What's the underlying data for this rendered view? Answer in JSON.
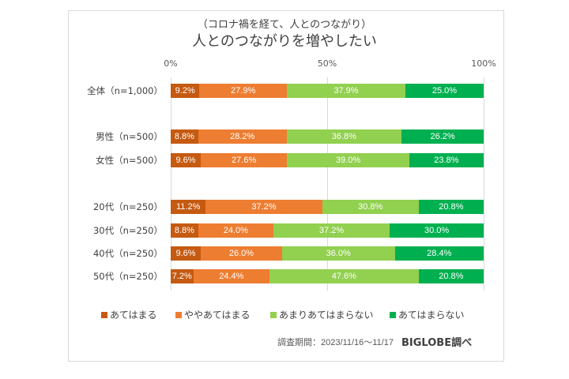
{
  "chart_data": {
    "type": "bar",
    "stacked": true,
    "orientation": "horizontal",
    "subtitle": "（コロナ禍を経て、人とのつながり）",
    "title": "人とのつながりを増やしたい",
    "xlim": [
      0,
      100
    ],
    "ticks": [
      "0%",
      "50%",
      "100%"
    ],
    "grid": true,
    "legend_position": "bottom",
    "categories": [
      "全体（n=1,000）",
      "男性（n=500）",
      "女性（n=500）",
      "20代（n=250）",
      "30代（n=250）",
      "40代（n=250）",
      "50代（n=250）"
    ],
    "series": [
      {
        "name": "あてはまる",
        "color": "#c55a11",
        "values": [
          9.2,
          8.8,
          9.6,
          11.2,
          8.8,
          9.6,
          7.2
        ]
      },
      {
        "name": "ややあてはまる",
        "color": "#ed7d31",
        "values": [
          27.9,
          28.2,
          27.6,
          37.2,
          24.0,
          26.0,
          24.4
        ]
      },
      {
        "name": "あまりあてはまらない",
        "color": "#92d050",
        "values": [
          37.9,
          36.8,
          39.0,
          30.8,
          37.2,
          36.0,
          47.6
        ]
      },
      {
        "name": "あてはまらない",
        "color": "#00b050",
        "values": [
          25.0,
          26.2,
          23.8,
          20.8,
          30.0,
          28.4,
          20.8
        ]
      }
    ]
  },
  "footer": {
    "source": "調査期間：2023/11/16～11/17",
    "brand": "BIGLOBE調べ"
  }
}
